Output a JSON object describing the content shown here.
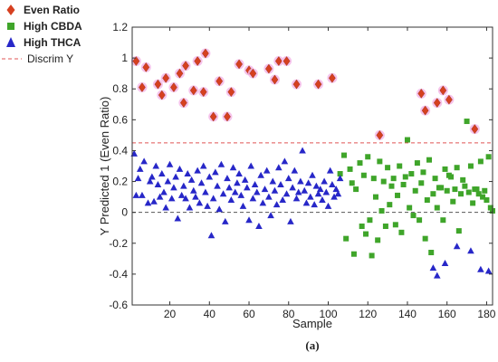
{
  "chart_data": {
    "type": "scatter",
    "xlabel": "Sample",
    "ylabel": "Y Predicted 1 (Even Ratio)",
    "panel_label": "(a)",
    "xlim": [
      1,
      183
    ],
    "ylim": [
      -0.6,
      1.2
    ],
    "xticks": [
      "20",
      "40",
      "60",
      "80",
      "100",
      "120",
      "140",
      "160",
      "180"
    ],
    "yticks": [
      "-0.6",
      "-0.4",
      "-0.2",
      "0",
      "0.2",
      "0.4",
      "0.6",
      "0.8",
      "1",
      "1.2"
    ],
    "legend": {
      "position": "top-left",
      "items": [
        {
          "label": "Even Ratio",
          "marker": "diamond",
          "color": "#d64020"
        },
        {
          "label": "High CBDA",
          "marker": "square",
          "color": "#3fa52a"
        },
        {
          "label": "High THCA",
          "marker": "triangle",
          "color": "#2727c8"
        },
        {
          "label": "Discrim Y",
          "marker": "dashed-line",
          "color": "#e05555"
        }
      ]
    },
    "threshold_line": {
      "y": 0.45,
      "color": "#e05555"
    },
    "zero_line": {
      "y": 0,
      "color": "#555555"
    },
    "series": [
      {
        "name": "Even Ratio",
        "marker": "diamond",
        "color": "#d64020",
        "halo": "#f5b8e8",
        "points": [
          [
            3,
            0.98
          ],
          [
            6,
            0.81
          ],
          [
            8,
            0.94
          ],
          [
            14,
            0.83
          ],
          [
            16,
            0.76
          ],
          [
            18,
            0.87
          ],
          [
            22,
            0.81
          ],
          [
            25,
            0.9
          ],
          [
            27,
            0.71
          ],
          [
            28,
            0.95
          ],
          [
            32,
            0.79
          ],
          [
            34,
            0.98
          ],
          [
            37,
            0.78
          ],
          [
            38,
            1.03
          ],
          [
            42,
            0.62
          ],
          [
            45,
            0.85
          ],
          [
            49,
            0.62
          ],
          [
            51,
            0.78
          ],
          [
            55,
            0.96
          ],
          [
            60,
            0.92
          ],
          [
            62,
            0.9
          ],
          [
            70,
            0.93
          ],
          [
            73,
            0.86
          ],
          [
            75,
            0.98
          ],
          [
            79,
            0.98
          ],
          [
            84,
            0.83
          ],
          [
            95,
            0.83
          ],
          [
            102,
            0.87
          ],
          [
            126,
            0.5
          ],
          [
            147,
            0.77
          ],
          [
            149,
            0.66
          ],
          [
            155,
            0.71
          ],
          [
            158,
            0.79
          ],
          [
            161,
            0.73
          ],
          [
            174,
            0.54
          ]
        ]
      },
      {
        "name": "High CBDA",
        "marker": "square",
        "color": "#3fa52a",
        "halo": "#f5b8e8",
        "points": [
          [
            106,
            0.25
          ],
          [
            108,
            0.37
          ],
          [
            109,
            -0.17
          ],
          [
            111,
            0.28
          ],
          [
            112,
            0.19
          ],
          [
            113,
            -0.27
          ],
          [
            114,
            0.15
          ],
          [
            116,
            0.32
          ],
          [
            117,
            -0.09
          ],
          [
            118,
            0.24
          ],
          [
            119,
            -0.14
          ],
          [
            120,
            0.36
          ],
          [
            121,
            -0.05
          ],
          [
            122,
            -0.28
          ],
          [
            123,
            0.22
          ],
          [
            124,
            0.1
          ],
          [
            125,
            -0.18
          ],
          [
            126,
            0.33
          ],
          [
            127,
            0.01
          ],
          [
            128,
            0.2
          ],
          [
            129,
            -0.09
          ],
          [
            130,
            0.29
          ],
          [
            131,
            0.05
          ],
          [
            132,
            0.17
          ],
          [
            133,
            0.22
          ],
          [
            134,
            -0.08
          ],
          [
            135,
            0.11
          ],
          [
            136,
            0.3
          ],
          [
            137,
            -0.13
          ],
          [
            138,
            0.18
          ],
          [
            139,
            0.23
          ],
          [
            140,
            0.47
          ],
          [
            141,
            0.03
          ],
          [
            142,
            0.25
          ],
          [
            143,
            -0.02
          ],
          [
            144,
            0.14
          ],
          [
            145,
            0.32
          ],
          [
            146,
            -0.05
          ],
          [
            147,
            0.19
          ],
          [
            148,
            0.26
          ],
          [
            149,
            -0.17
          ],
          [
            150,
            0.08
          ],
          [
            151,
            0.34
          ],
          [
            152,
            -0.26
          ],
          [
            153,
            0.12
          ],
          [
            154,
            0.22
          ],
          [
            155,
            0.03
          ],
          [
            156,
            0.16
          ],
          [
            157,
            0.16
          ],
          [
            158,
            -0.05
          ],
          [
            159,
            0.28
          ],
          [
            160,
            0.14
          ],
          [
            161,
            0.24
          ],
          [
            162,
            0.23
          ],
          [
            163,
            0.07
          ],
          [
            164,
            0.15
          ],
          [
            165,
            0.29
          ],
          [
            166,
            -0.12
          ],
          [
            167,
            0.12
          ],
          [
            168,
            0.21
          ],
          [
            169,
            0.17
          ],
          [
            170,
            0.59
          ],
          [
            171,
            0.13
          ],
          [
            172,
            0.3
          ],
          [
            173,
            0.06
          ],
          [
            174,
            0.15
          ],
          [
            175,
            0.15
          ],
          [
            176,
            0.12
          ],
          [
            177,
            0.33
          ],
          [
            178,
            0.1
          ],
          [
            179,
            0.14
          ],
          [
            180,
            0.08
          ],
          [
            181,
            0.36
          ],
          [
            182,
            0.03
          ],
          [
            183,
            0.01
          ]
        ]
      },
      {
        "name": "High THCA",
        "marker": "triangle",
        "color": "#2727c8",
        "halo": "#f5b8e8",
        "points": [
          [
            2,
            0.38
          ],
          [
            3,
            0.11
          ],
          [
            4,
            0.22
          ],
          [
            5,
            0.28
          ],
          [
            6,
            0.11
          ],
          [
            7,
            0.33
          ],
          [
            9,
            0.06
          ],
          [
            10,
            0.2
          ],
          [
            11,
            0.23
          ],
          [
            12,
            0.07
          ],
          [
            13,
            0.3
          ],
          [
            14,
            0.18
          ],
          [
            15,
            0.1
          ],
          [
            16,
            0.25
          ],
          [
            17,
            0.13
          ],
          [
            18,
            0.03
          ],
          [
            19,
            0.2
          ],
          [
            20,
            0.31
          ],
          [
            21,
            0.09
          ],
          [
            22,
            0.16
          ],
          [
            23,
            0.23
          ],
          [
            24,
            -0.04
          ],
          [
            25,
            0.28
          ],
          [
            26,
            0.11
          ],
          [
            27,
            0.17
          ],
          [
            28,
            0.09
          ],
          [
            29,
            0.25
          ],
          [
            30,
            0.03
          ],
          [
            31,
            0.21
          ],
          [
            32,
            0.14
          ],
          [
            33,
            0.1
          ],
          [
            34,
            0.27
          ],
          [
            35,
            0.06
          ],
          [
            36,
            0.19
          ],
          [
            37,
            0.3
          ],
          [
            38,
            0.13
          ],
          [
            39,
            0.04
          ],
          [
            40,
            0.23
          ],
          [
            41,
            -0.15
          ],
          [
            42,
            0.09
          ],
          [
            43,
            0.26
          ],
          [
            44,
            0.17
          ],
          [
            45,
            0.02
          ],
          [
            46,
            0.31
          ],
          [
            47,
            0.12
          ],
          [
            48,
            -0.06
          ],
          [
            49,
            0.22
          ],
          [
            50,
            0.16
          ],
          [
            51,
            0.08
          ],
          [
            52,
            0.29
          ],
          [
            53,
            0.13
          ],
          [
            54,
            0.19
          ],
          [
            55,
            0.25
          ],
          [
            56,
            0.11
          ],
          [
            57,
            0.04
          ],
          [
            58,
            0.21
          ],
          [
            59,
            0.16
          ],
          [
            60,
            -0.05
          ],
          [
            61,
            0.3
          ],
          [
            62,
            0.09
          ],
          [
            63,
            0.18
          ],
          [
            64,
            0.13
          ],
          [
            65,
            -0.09
          ],
          [
            66,
            0.24
          ],
          [
            67,
            0.06
          ],
          [
            68,
            0.15
          ],
          [
            69,
            0.27
          ],
          [
            70,
            0.1
          ],
          [
            71,
            -0.02
          ],
          [
            72,
            0.2
          ],
          [
            73,
            0.14
          ],
          [
            74,
            0.05
          ],
          [
            75,
            0.29
          ],
          [
            76,
            0.18
          ],
          [
            77,
            0.08
          ],
          [
            78,
            0.33
          ],
          [
            79,
            0.12
          ],
          [
            80,
            0.22
          ],
          [
            81,
            -0.06
          ],
          [
            82,
            0.16
          ],
          [
            83,
            0.27
          ],
          [
            84,
            0.09
          ],
          [
            85,
            0.13
          ],
          [
            86,
            0.2
          ],
          [
            87,
            0.4
          ],
          [
            88,
            0.14
          ],
          [
            89,
            0.06
          ],
          [
            90,
            0.19
          ],
          [
            91,
            0.1
          ],
          [
            92,
            0.24
          ],
          [
            93,
            0.05
          ],
          [
            94,
            0.17
          ],
          [
            95,
            0.12
          ],
          [
            96,
            0.15
          ],
          [
            97,
            0.08
          ],
          [
            98,
            0.2
          ],
          [
            99,
            0.13
          ],
          [
            100,
            0.04
          ],
          [
            101,
            0.27
          ],
          [
            102,
            0.18
          ],
          [
            103,
            0.1
          ],
          [
            104,
            0.15
          ],
          [
            105,
            0.12
          ],
          [
            106,
            0.22
          ],
          [
            153,
            -0.36
          ],
          [
            155,
            -0.41
          ],
          [
            159,
            -0.33
          ],
          [
            165,
            -0.22
          ],
          [
            172,
            -0.25
          ],
          [
            177,
            -0.37
          ],
          [
            181,
            -0.38
          ]
        ]
      }
    ]
  }
}
